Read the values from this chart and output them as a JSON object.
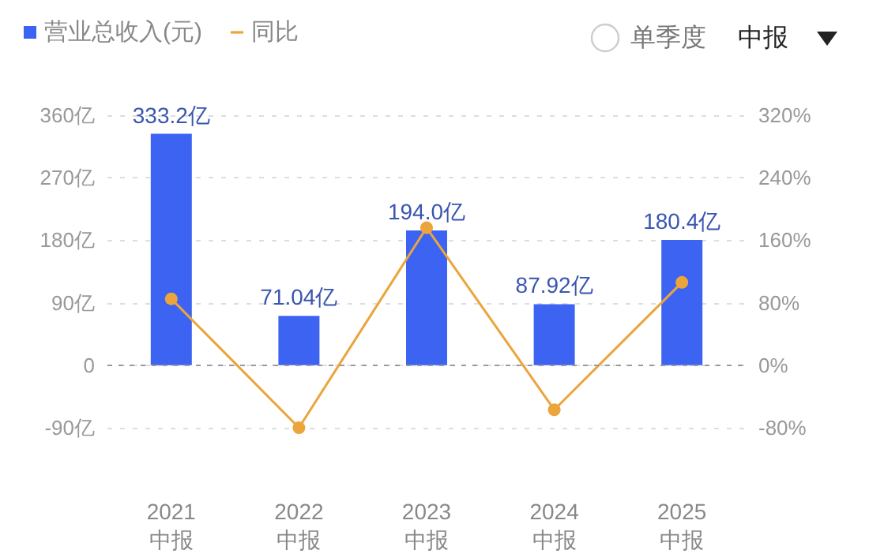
{
  "chart_data": {
    "type": "bar",
    "categories": [
      "2021\n中报",
      "2022\n中报",
      "2023\n中报",
      "2024\n中报",
      "2025\n中报"
    ],
    "series": [
      {
        "name": "营业总收入(元)",
        "color": "#3d63f2",
        "values": [
          333.2,
          71.04,
          194.0,
          87.92,
          180.4
        ],
        "value_labels": [
          "333.2亿",
          "71.04亿",
          "194.0亿",
          "87.92亿",
          "180.4亿"
        ]
      },
      {
        "name": "同比",
        "type": "line",
        "axis": "y2",
        "color": "#eba53c",
        "values": [
          85,
          -80,
          176,
          -57,
          106
        ]
      }
    ],
    "ref_lines": [
      {
        "axis": "y",
        "value": 0,
        "color": "#999999",
        "line_style": "dashed"
      }
    ],
    "ylim": [
      -90,
      360
    ],
    "yticks": [
      {
        "value": -90,
        "label": "-90亿"
      },
      0,
      {
        "value": 90,
        "label": "90亿"
      },
      {
        "value": 180,
        "label": "180亿"
      },
      {
        "value": 270,
        "label": "270亿"
      },
      {
        "value": 360,
        "label": "360亿"
      }
    ],
    "y2lim": [
      -80,
      320
    ],
    "y2ticks": [
      {
        "value": -80,
        "label": "-80%"
      },
      {
        "value": 0,
        "label": "0%"
      },
      {
        "value": 80,
        "label": "80%"
      },
      {
        "value": 160,
        "label": "160%"
      },
      {
        "value": 240,
        "label": "240%"
      },
      {
        "value": 320,
        "label": "320%"
      }
    ],
    "grid": "y",
    "legend": "top left",
    "marker": "circle",
    "line_style": "solid",
    "annotations": [
      "单季度",
      "中报"
    ]
  }
}
